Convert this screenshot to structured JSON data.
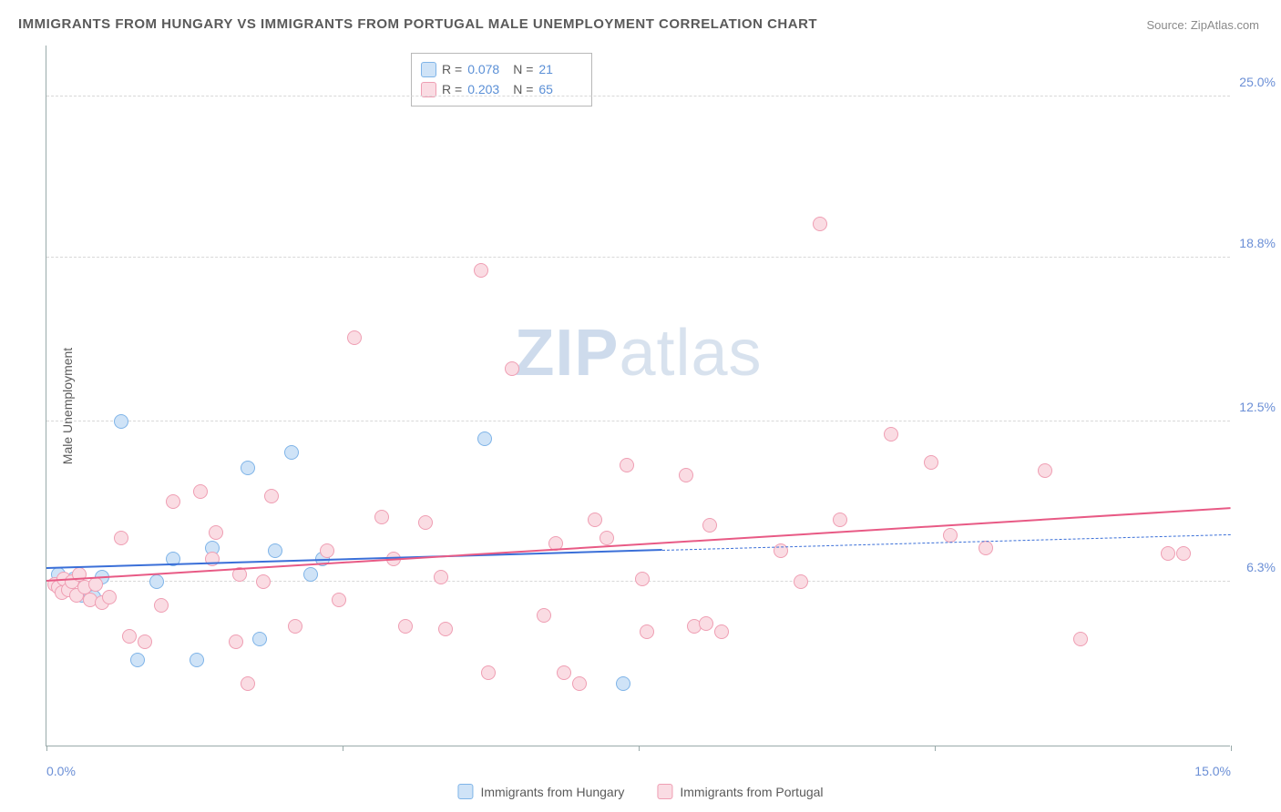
{
  "title": "IMMIGRANTS FROM HUNGARY VS IMMIGRANTS FROM PORTUGAL MALE UNEMPLOYMENT CORRELATION CHART",
  "source": "Source: ZipAtlas.com",
  "y_axis_label": "Male Unemployment",
  "watermark_bold": "ZIP",
  "watermark_rest": "atlas",
  "chart": {
    "type": "scatter",
    "background_color": "#ffffff",
    "grid_color": "#d8d8d8",
    "axis_color": "#99aaaa",
    "xlim": [
      0,
      15
    ],
    "ylim": [
      0,
      27
    ],
    "x_ticks": [
      0,
      3.75,
      7.5,
      11.25,
      15
    ],
    "x_tick_labels": {
      "0": "0.0%",
      "15": "15.0%"
    },
    "y_gridlines": [
      6.3,
      12.5,
      18.8,
      25.0
    ],
    "y_tick_labels": [
      "6.3%",
      "12.5%",
      "18.8%",
      "25.0%"
    ],
    "marker_radius": 8,
    "marker_stroke_width": 1.5,
    "trend_line_width": 2
  },
  "series": [
    {
      "name": "Immigrants from Hungary",
      "key": "hungary",
      "fill": "#cfe3f7",
      "stroke": "#7fb4e8",
      "line_color": "#3a6fd8",
      "R": "0.078",
      "N": "21",
      "trend": {
        "x1": 0,
        "y1": 6.8,
        "x2": 7.8,
        "y2": 7.5,
        "extend_to": 15,
        "extend_y": 8.1
      },
      "points": [
        [
          0.15,
          6.6
        ],
        [
          0.25,
          6.0
        ],
        [
          0.35,
          6.4
        ],
        [
          0.45,
          5.8
        ],
        [
          0.55,
          5.9
        ],
        [
          0.7,
          6.5
        ],
        [
          0.95,
          12.5
        ],
        [
          1.15,
          3.3
        ],
        [
          1.4,
          6.3
        ],
        [
          1.6,
          7.2
        ],
        [
          1.9,
          3.3
        ],
        [
          2.1,
          7.6
        ],
        [
          2.55,
          10.7
        ],
        [
          2.7,
          4.1
        ],
        [
          2.9,
          7.5
        ],
        [
          3.1,
          11.3
        ],
        [
          3.35,
          6.6
        ],
        [
          3.5,
          7.2
        ],
        [
          5.55,
          11.8
        ],
        [
          7.3,
          2.4
        ],
        [
          0.6,
          5.7
        ]
      ]
    },
    {
      "name": "Immigrants from Portugal",
      "key": "portugal",
      "fill": "#fadce3",
      "stroke": "#ef9eb3",
      "line_color": "#e85a85",
      "R": "0.203",
      "N": "65",
      "trend": {
        "x1": 0,
        "y1": 6.3,
        "x2": 15,
        "y2": 9.1
      },
      "points": [
        [
          0.1,
          6.2
        ],
        [
          0.15,
          6.1
        ],
        [
          0.2,
          5.9
        ],
        [
          0.22,
          6.4
        ],
        [
          0.28,
          6.0
        ],
        [
          0.32,
          6.3
        ],
        [
          0.38,
          5.8
        ],
        [
          0.42,
          6.6
        ],
        [
          0.48,
          6.1
        ],
        [
          0.55,
          5.6
        ],
        [
          0.62,
          6.2
        ],
        [
          0.7,
          5.5
        ],
        [
          0.8,
          5.7
        ],
        [
          0.95,
          8.0
        ],
        [
          1.05,
          4.2
        ],
        [
          1.25,
          4.0
        ],
        [
          1.45,
          5.4
        ],
        [
          1.6,
          9.4
        ],
        [
          1.95,
          9.8
        ],
        [
          2.1,
          7.2
        ],
        [
          2.15,
          8.2
        ],
        [
          2.4,
          4.0
        ],
        [
          2.45,
          6.6
        ],
        [
          2.55,
          2.4
        ],
        [
          2.75,
          6.3
        ],
        [
          2.85,
          9.6
        ],
        [
          3.15,
          4.6
        ],
        [
          3.55,
          7.5
        ],
        [
          3.7,
          5.6
        ],
        [
          3.9,
          15.7
        ],
        [
          4.25,
          8.8
        ],
        [
          4.4,
          7.2
        ],
        [
          4.55,
          4.6
        ],
        [
          4.8,
          8.6
        ],
        [
          5.0,
          6.5
        ],
        [
          5.05,
          4.5
        ],
        [
          5.5,
          18.3
        ],
        [
          5.6,
          2.8
        ],
        [
          5.9,
          14.5
        ],
        [
          6.3,
          5.0
        ],
        [
          6.45,
          7.8
        ],
        [
          6.55,
          2.8
        ],
        [
          6.75,
          2.4
        ],
        [
          6.95,
          8.7
        ],
        [
          7.1,
          8.0
        ],
        [
          7.35,
          10.8
        ],
        [
          7.55,
          6.4
        ],
        [
          7.6,
          4.4
        ],
        [
          8.1,
          10.4
        ],
        [
          8.2,
          4.6
        ],
        [
          8.35,
          4.7
        ],
        [
          8.4,
          8.5
        ],
        [
          8.55,
          4.4
        ],
        [
          9.3,
          7.5
        ],
        [
          9.55,
          6.3
        ],
        [
          9.8,
          20.1
        ],
        [
          10.05,
          8.7
        ],
        [
          10.7,
          12.0
        ],
        [
          11.2,
          10.9
        ],
        [
          11.45,
          8.1
        ],
        [
          11.9,
          7.6
        ],
        [
          12.65,
          10.6
        ],
        [
          13.1,
          4.1
        ],
        [
          14.2,
          7.4
        ],
        [
          14.4,
          7.4
        ]
      ]
    }
  ],
  "legend": {
    "R_label": "R =",
    "N_label": "N ="
  }
}
